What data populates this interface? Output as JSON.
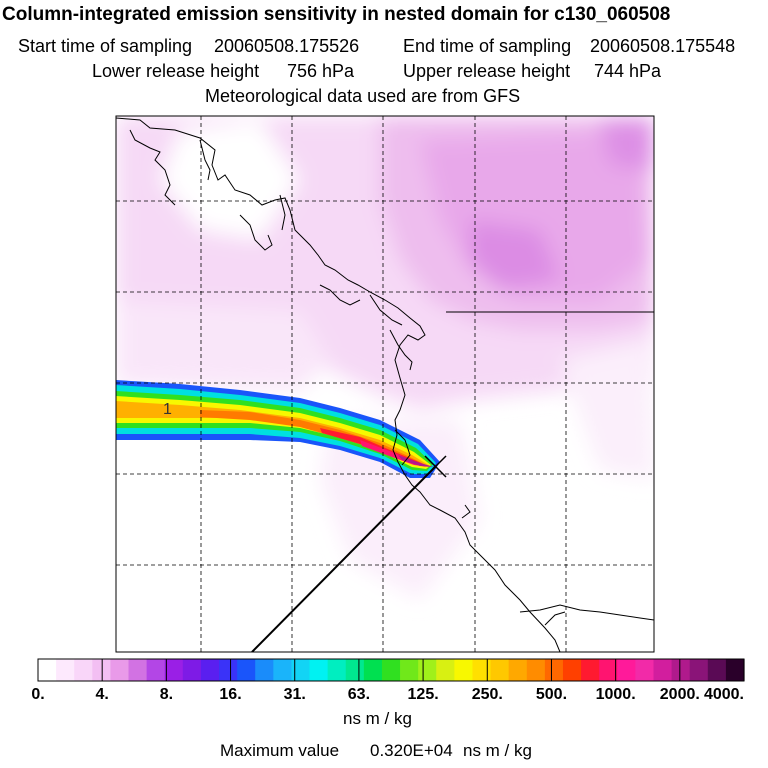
{
  "header": {
    "title": "Column-integrated emission sensitivity in nested domain for c130_060508",
    "start_label": "Start time of sampling",
    "start_value": "20060508.175526",
    "end_label": "End time of sampling",
    "end_value": "20060508.175548",
    "lower_label": "Lower release height",
    "lower_value": "756 hPa",
    "upper_label": "Upper release height",
    "upper_value": "744 hPa",
    "met_line": "Meteorological data used are from GFS"
  },
  "chart_data": {
    "type": "heatmap",
    "title": "Column-integrated emission sensitivity in nested domain for c130_060508",
    "units": "ns m / kg",
    "colorbar_ticks": [
      "0.",
      "4.",
      "8.",
      "16.",
      "31.",
      "63.",
      "125.",
      "250.",
      "500.",
      "1000.",
      "2000.",
      "4000."
    ],
    "colorbar_colors": [
      "#ffffff",
      "#fde9fd",
      "#f9d6f9",
      "#f3bff3",
      "#e99ae9",
      "#d272e3",
      "#b346e6",
      "#9a1fe6",
      "#7e1be6",
      "#5a1ff0",
      "#3a33f8",
      "#1a55fa",
      "#1a8cfa",
      "#1ab4fa",
      "#12d4f5",
      "#00f2f2",
      "#00eec0",
      "#00e890",
      "#00e050",
      "#30e020",
      "#70e81a",
      "#a0f01a",
      "#d8f012",
      "#f8f800",
      "#ffe000",
      "#ffc800",
      "#ffa800",
      "#ff8c00",
      "#ff6800",
      "#ff4000",
      "#ff1a30",
      "#ff1470",
      "#ff1a9a",
      "#f22aa8",
      "#d21e9e",
      "#b01a8c",
      "#8a1478",
      "#5a0a55",
      "#2a002a"
    ],
    "maximum_label": "Maximum value",
    "maximum_value": "0.320E+04",
    "plume_label": "1",
    "plume_max_class": "2000.-4000."
  }
}
